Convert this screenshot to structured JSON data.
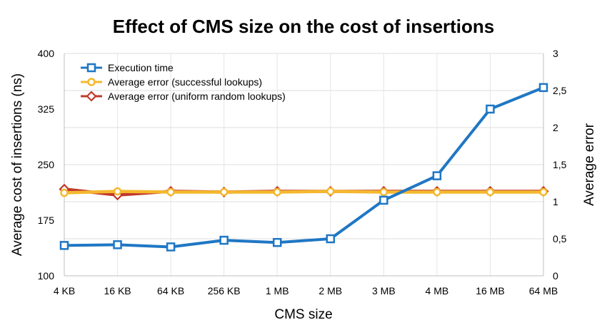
{
  "chart_data": {
    "type": "line",
    "title": "Effect of CMS size on the cost of insertions",
    "xlabel": "CMS size",
    "ylabel": "Average cost of insertions (ns)",
    "y2label": "Average error",
    "categories": [
      "4 KB",
      "16 KB",
      "64 KB",
      "256 KB",
      "1 MB",
      "2 MB",
      "3 MB",
      "4 MB",
      "16 MB",
      "64 MB"
    ],
    "ylim": [
      100,
      400
    ],
    "yticks": [
      "100",
      "175",
      "250",
      "325",
      "400"
    ],
    "y2lim": [
      0,
      3
    ],
    "y2ticks": [
      "0",
      "0,5",
      "1",
      "1,5",
      "2",
      "2,5",
      "3"
    ],
    "grid": true,
    "legend_position": "top-left",
    "series": [
      {
        "name": "Execution time",
        "axis": "left",
        "color": "#1f77c4",
        "marker": "square",
        "values": [
          141,
          142,
          139,
          148,
          145,
          150,
          202,
          235,
          325,
          354
        ]
      },
      {
        "name": "Average error (successful lookups)",
        "axis": "right",
        "color": "#f5b82e",
        "marker": "circle",
        "values": [
          1.12,
          1.14,
          1.13,
          1.13,
          1.13,
          1.14,
          1.13,
          1.13,
          1.13,
          1.13
        ]
      },
      {
        "name": "Average error (uniform random lookups)",
        "axis": "right",
        "color": "#c0392b",
        "marker": "diamond",
        "values": [
          1.17,
          1.09,
          1.14,
          1.13,
          1.14,
          1.14,
          1.14,
          1.14,
          1.14,
          1.14
        ]
      }
    ]
  }
}
